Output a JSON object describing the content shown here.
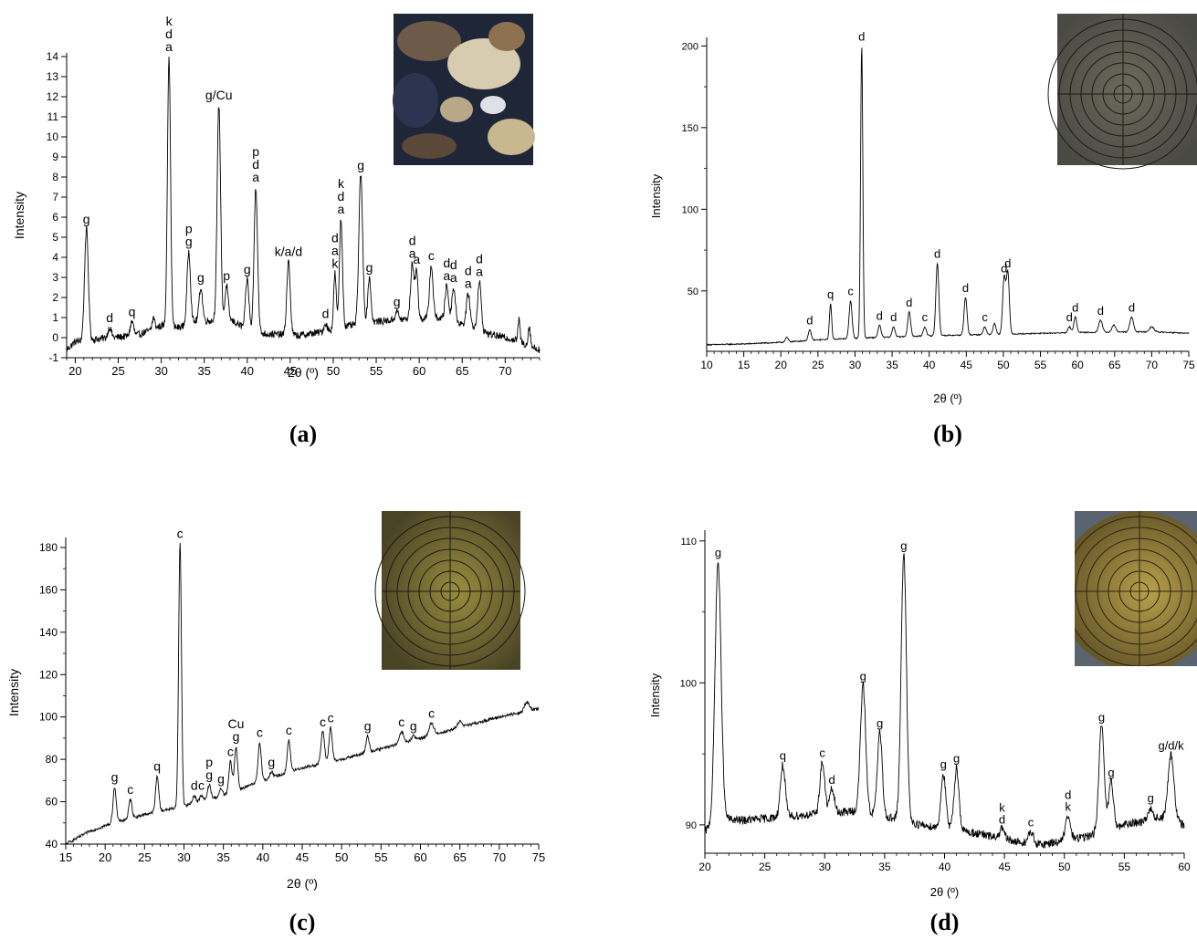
{
  "chart_data": [
    {
      "type": "line",
      "panel_label": "(a)",
      "xlabel": "2θ (º)",
      "ylabel": "Intensity",
      "xlim": [
        19,
        74
      ],
      "ylim": [
        -1,
        14
      ],
      "xticks": [
        20,
        25,
        30,
        35,
        40,
        45,
        50,
        55,
        60,
        65,
        70
      ],
      "yticks": [
        -1,
        0,
        1,
        2,
        3,
        4,
        5,
        6,
        7,
        8,
        9,
        10,
        11,
        12,
        13,
        14
      ],
      "baseline": [
        [
          19,
          -0.6
        ],
        [
          20,
          -0.2
        ],
        [
          23,
          -0.05
        ],
        [
          27,
          0.1
        ],
        [
          29,
          0.4
        ],
        [
          30,
          0.6
        ],
        [
          32,
          0.5
        ],
        [
          34,
          0.8
        ],
        [
          38,
          0.9
        ],
        [
          40,
          0.4
        ],
        [
          42,
          0.2
        ],
        [
          46,
          0.1
        ],
        [
          49,
          0.3
        ],
        [
          52,
          0.6
        ],
        [
          55,
          0.8
        ],
        [
          58,
          0.9
        ],
        [
          62,
          1.0
        ],
        [
          66,
          0.6
        ],
        [
          68,
          0.2
        ],
        [
          71,
          -0.1
        ],
        [
          74,
          -0.6
        ]
      ],
      "noise": 0.18,
      "peaks": [
        {
          "x": 21.3,
          "y": 5.4,
          "w": 0.22,
          "label": "g"
        },
        {
          "x": 24.0,
          "y": 0.5,
          "w": 0.2,
          "label": "d"
        },
        {
          "x": 26.6,
          "y": 0.8,
          "w": 0.2,
          "label": "q"
        },
        {
          "x": 29.1,
          "y": 1.0,
          "w": 0.15
        },
        {
          "x": 30.9,
          "y": 14.0,
          "w": 0.18,
          "label": "k\nd\na"
        },
        {
          "x": 33.2,
          "y": 4.3,
          "w": 0.2,
          "label": "p\ng"
        },
        {
          "x": 34.6,
          "y": 2.5,
          "w": 0.2,
          "label": "g"
        },
        {
          "x": 36.7,
          "y": 11.6,
          "w": 0.2,
          "label": "g/Cu"
        },
        {
          "x": 37.6,
          "y": 2.6,
          "w": 0.18,
          "label": "p"
        },
        {
          "x": 40.0,
          "y": 2.9,
          "w": 0.2,
          "label": "g"
        },
        {
          "x": 41.0,
          "y": 7.5,
          "w": 0.2,
          "label": "p\nd\na"
        },
        {
          "x": 44.8,
          "y": 3.8,
          "w": 0.2,
          "label": "k/a/d"
        },
        {
          "x": 49.1,
          "y": 0.7,
          "w": 0.18,
          "label": "d"
        },
        {
          "x": 50.2,
          "y": 3.2,
          "w": 0.15,
          "label": "d\na\nk"
        },
        {
          "x": 50.9,
          "y": 5.9,
          "w": 0.18,
          "label": "k\nd\na"
        },
        {
          "x": 53.2,
          "y": 8.1,
          "w": 0.22,
          "label": "g"
        },
        {
          "x": 54.2,
          "y": 3.0,
          "w": 0.18,
          "label": "g"
        },
        {
          "x": 57.4,
          "y": 1.3,
          "w": 0.2,
          "label": "g"
        },
        {
          "x": 59.2,
          "y": 3.7,
          "w": 0.2,
          "label": "d\na"
        },
        {
          "x": 59.7,
          "y": 3.4,
          "w": 0.15,
          "label": "a"
        },
        {
          "x": 61.4,
          "y": 3.6,
          "w": 0.2,
          "label": "c"
        },
        {
          "x": 63.2,
          "y": 2.6,
          "w": 0.2,
          "label": "d\na"
        },
        {
          "x": 64.0,
          "y": 2.5,
          "w": 0.2,
          "label": "d\na"
        },
        {
          "x": 65.7,
          "y": 2.2,
          "w": 0.2,
          "label": "d\na"
        },
        {
          "x": 67.0,
          "y": 2.8,
          "w": 0.2,
          "label": "d\na"
        },
        {
          "x": 71.6,
          "y": 0.9,
          "w": 0.12
        },
        {
          "x": 72.8,
          "y": 0.6,
          "w": 0.12
        }
      ]
    },
    {
      "type": "line",
      "panel_label": "(b)",
      "xlabel": "2θ (º)",
      "ylabel": "Intensity",
      "xlim": [
        10,
        75
      ],
      "ylim": [
        13,
        203
      ],
      "xticks": [
        10,
        15,
        20,
        25,
        30,
        35,
        40,
        45,
        50,
        55,
        60,
        65,
        70,
        75
      ],
      "yticks": [
        50,
        100,
        150,
        200
      ],
      "baseline": [
        [
          10,
          17.0
        ],
        [
          15,
          17.5
        ],
        [
          20,
          18.5
        ],
        [
          25,
          20.0
        ],
        [
          30,
          21.0
        ],
        [
          40,
          22.5
        ],
        [
          50,
          23.5
        ],
        [
          60,
          24.5
        ],
        [
          70,
          25.0
        ],
        [
          75,
          24.0
        ]
      ],
      "noise": 0.35,
      "peaks": [
        {
          "x": 20.8,
          "y": 21.5,
          "w": 0.2
        },
        {
          "x": 23.9,
          "y": 26.0,
          "w": 0.2,
          "label": "d"
        },
        {
          "x": 26.7,
          "y": 42.0,
          "w": 0.15,
          "label": "q"
        },
        {
          "x": 29.4,
          "y": 44.0,
          "w": 0.2,
          "label": "c"
        },
        {
          "x": 30.9,
          "y": 200.0,
          "w": 0.15,
          "label": "d"
        },
        {
          "x": 33.3,
          "y": 29.0,
          "w": 0.2,
          "label": "d"
        },
        {
          "x": 35.2,
          "y": 28.0,
          "w": 0.2,
          "label": "d"
        },
        {
          "x": 37.3,
          "y": 37.0,
          "w": 0.2,
          "label": "d"
        },
        {
          "x": 39.4,
          "y": 28.0,
          "w": 0.2,
          "label": "c"
        },
        {
          "x": 41.1,
          "y": 67.0,
          "w": 0.2,
          "label": "d"
        },
        {
          "x": 44.9,
          "y": 46.0,
          "w": 0.2,
          "label": "d"
        },
        {
          "x": 47.5,
          "y": 28.0,
          "w": 0.2,
          "label": "c"
        },
        {
          "x": 48.8,
          "y": 30.0,
          "w": 0.2
        },
        {
          "x": 50.1,
          "y": 58.0,
          "w": 0.2,
          "label": "d"
        },
        {
          "x": 50.6,
          "y": 61.0,
          "w": 0.2,
          "label": "d"
        },
        {
          "x": 58.9,
          "y": 28.0,
          "w": 0.2,
          "label": "d"
        },
        {
          "x": 59.7,
          "y": 34.0,
          "w": 0.2,
          "label": "d"
        },
        {
          "x": 63.1,
          "y": 32.0,
          "w": 0.25,
          "label": "d"
        },
        {
          "x": 64.9,
          "y": 29.0,
          "w": 0.25
        },
        {
          "x": 67.3,
          "y": 34.0,
          "w": 0.25,
          "label": "d"
        },
        {
          "x": 70.0,
          "y": 28.0,
          "w": 0.3
        }
      ]
    },
    {
      "type": "line",
      "panel_label": "(c)",
      "xlabel": "2θ (º)",
      "ylabel": "Intensity",
      "xlim": [
        15,
        75
      ],
      "ylim": [
        40,
        183
      ],
      "xticks": [
        15,
        20,
        25,
        30,
        35,
        40,
        45,
        50,
        55,
        60,
        65,
        70,
        75
      ],
      "yticks": [
        40,
        60,
        80,
        100,
        120,
        140,
        160,
        180
      ],
      "baseline": [
        [
          15,
          40.0
        ],
        [
          18,
          46.0
        ],
        [
          21,
          50.0
        ],
        [
          25,
          54.0
        ],
        [
          30,
          58.0
        ],
        [
          35,
          63.0
        ],
        [
          40,
          70.0
        ],
        [
          45,
          76.0
        ],
        [
          50,
          80.0
        ],
        [
          55,
          85.0
        ],
        [
          60,
          90.0
        ],
        [
          65,
          95.0
        ],
        [
          70,
          100.0
        ],
        [
          75,
          104.0
        ]
      ],
      "noise": 0.7,
      "peaks": [
        {
          "x": 21.2,
          "y": 67.0,
          "w": 0.2,
          "label": "g"
        },
        {
          "x": 23.2,
          "y": 61.0,
          "w": 0.2,
          "label": "c"
        },
        {
          "x": 26.6,
          "y": 72.0,
          "w": 0.2,
          "label": "q"
        },
        {
          "x": 29.5,
          "y": 182.0,
          "w": 0.18,
          "label": "c"
        },
        {
          "x": 31.3,
          "y": 63.0,
          "w": 0.2,
          "label": "d"
        },
        {
          "x": 32.2,
          "y": 63.0,
          "w": 0.2,
          "label": "c"
        },
        {
          "x": 33.2,
          "y": 68.0,
          "w": 0.2,
          "label": "p\ng"
        },
        {
          "x": 34.7,
          "y": 66.0,
          "w": 0.2,
          "label": "g"
        },
        {
          "x": 35.9,
          "y": 79.0,
          "w": 0.2,
          "label": "c"
        },
        {
          "x": 36.6,
          "y": 86.0,
          "w": 0.2,
          "label": "Cu\ng"
        },
        {
          "x": 39.6,
          "y": 88.0,
          "w": 0.2,
          "label": "c"
        },
        {
          "x": 41.1,
          "y": 74.0,
          "w": 0.2,
          "label": "g"
        },
        {
          "x": 43.3,
          "y": 89.0,
          "w": 0.2,
          "label": "c"
        },
        {
          "x": 47.6,
          "y": 93.0,
          "w": 0.22,
          "label": "c"
        },
        {
          "x": 48.6,
          "y": 95.0,
          "w": 0.2,
          "label": "c"
        },
        {
          "x": 53.3,
          "y": 91.0,
          "w": 0.2,
          "label": "g"
        },
        {
          "x": 57.6,
          "y": 93.0,
          "w": 0.25,
          "label": "c"
        },
        {
          "x": 59.1,
          "y": 91.0,
          "w": 0.2,
          "label": "g"
        },
        {
          "x": 61.4,
          "y": 97.0,
          "w": 0.3,
          "label": "c"
        },
        {
          "x": 65.0,
          "y": 98.0,
          "w": 0.3
        },
        {
          "x": 73.5,
          "y": 107.0,
          "w": 0.3
        }
      ]
    },
    {
      "type": "line",
      "panel_label": "(d)",
      "xlabel": "2θ (º)",
      "ylabel": "Intensity",
      "xlim": [
        20,
        60
      ],
      "ylim": [
        88,
        110.5
      ],
      "xticks": [
        20,
        25,
        30,
        35,
        40,
        45,
        50,
        55,
        60
      ],
      "yticks": [
        90,
        100,
        110
      ],
      "baseline": [
        [
          20,
          89.5
        ],
        [
          21,
          90.5
        ],
        [
          23,
          90.3
        ],
        [
          27,
          90.6
        ],
        [
          30,
          90.8
        ],
        [
          33,
          91.0
        ],
        [
          38,
          90.0
        ],
        [
          42,
          89.5
        ],
        [
          46,
          88.8
        ],
        [
          48,
          88.6
        ],
        [
          52,
          89.2
        ],
        [
          55,
          90.0
        ],
        [
          58,
          90.5
        ],
        [
          60,
          90.0
        ]
      ],
      "noise": 0.3,
      "peaks": [
        {
          "x": 21.1,
          "y": 108.5,
          "w": 0.25,
          "label": "g"
        },
        {
          "x": 26.5,
          "y": 94.2,
          "w": 0.2,
          "label": "q"
        },
        {
          "x": 29.8,
          "y": 94.4,
          "w": 0.2,
          "label": "c"
        },
        {
          "x": 30.6,
          "y": 92.5,
          "w": 0.2,
          "label": "d"
        },
        {
          "x": 33.2,
          "y": 99.8,
          "w": 0.22,
          "label": "g"
        },
        {
          "x": 34.6,
          "y": 96.5,
          "w": 0.2,
          "label": "g"
        },
        {
          "x": 36.6,
          "y": 109.0,
          "w": 0.22,
          "label": "g"
        },
        {
          "x": 39.9,
          "y": 93.6,
          "w": 0.2,
          "label": "g"
        },
        {
          "x": 41.0,
          "y": 94.0,
          "w": 0.2,
          "label": "g"
        },
        {
          "x": 44.8,
          "y": 89.7,
          "w": 0.2,
          "label": "k\nd"
        },
        {
          "x": 47.2,
          "y": 89.5,
          "w": 0.2,
          "label": "c"
        },
        {
          "x": 50.3,
          "y": 90.6,
          "w": 0.2,
          "label": "d\nk"
        },
        {
          "x": 53.1,
          "y": 96.9,
          "w": 0.22,
          "label": "g"
        },
        {
          "x": 53.9,
          "y": 93.0,
          "w": 0.2,
          "label": "g"
        },
        {
          "x": 57.2,
          "y": 91.2,
          "w": 0.2,
          "label": "g"
        },
        {
          "x": 58.9,
          "y": 94.9,
          "w": 0.25,
          "label": "g/d/k"
        }
      ]
    }
  ]
}
